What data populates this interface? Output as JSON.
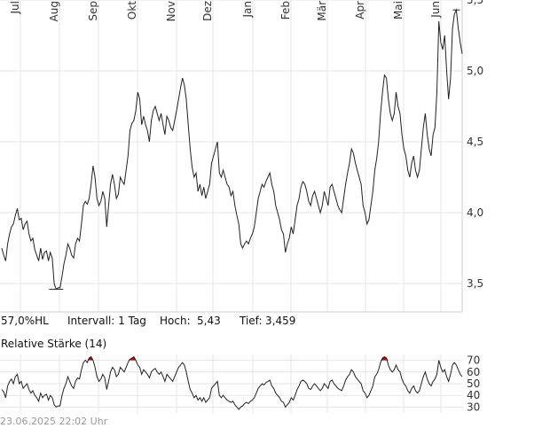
{
  "info_bar": {
    "range": "57,0%HL",
    "interval": "Intervall: 1 Tag",
    "high_label": "Hoch:",
    "high_value": "5,43",
    "low_label": "Tief:",
    "low_value": "3,459"
  },
  "rsi_title": "Relative Stärke (14)",
  "timestamp": "23.06.2025 22:02 Uhr",
  "colors": {
    "line": "#222222",
    "grid": "#e6e6e6",
    "rsi_overbought": "#cc0000"
  },
  "chart_data": [
    {
      "type": "line",
      "title": "",
      "xlabel": "",
      "ylabel": "",
      "x_ticks": [
        "Jul",
        "Aug",
        "Sep",
        "Okt",
        "Nov",
        "Dez",
        "Jan",
        "Feb",
        "Mär",
        "Apr",
        "Mai",
        "Jun"
      ],
      "y_ticks": [
        "3,5",
        "4,0",
        "4,5",
        "5,0",
        "5,5"
      ],
      "ylim": [
        3.3,
        5.5
      ],
      "grid": true,
      "series": [
        {
          "values": [
            3.75,
            3.7,
            3.66,
            3.78,
            3.85,
            3.9,
            3.92,
            3.98,
            4.03,
            3.95,
            3.96,
            3.88,
            3.92,
            3.94,
            3.85,
            3.8,
            3.82,
            3.74,
            3.7,
            3.66,
            3.75,
            3.67,
            3.72,
            3.73,
            3.66,
            3.72,
            3.68,
            3.5,
            3.46,
            3.47,
            3.47,
            3.55,
            3.64,
            3.7,
            3.78,
            3.75,
            3.7,
            3.68,
            3.78,
            3.82,
            3.8,
            3.92,
            4.05,
            4.08,
            4.06,
            4.1,
            4.2,
            4.33,
            4.25,
            4.1,
            4.05,
            4.08,
            4.15,
            4.1,
            3.9,
            4.05,
            4.2,
            4.27,
            4.2,
            4.1,
            4.13,
            4.25,
            4.22,
            4.2,
            4.3,
            4.4,
            4.58,
            4.63,
            4.65,
            4.72,
            4.85,
            4.8,
            4.62,
            4.68,
            4.62,
            4.58,
            4.5,
            4.65,
            4.72,
            4.75,
            4.7,
            4.65,
            4.7,
            4.62,
            4.55,
            4.68,
            4.65,
            4.6,
            4.58,
            4.65,
            4.72,
            4.8,
            4.88,
            4.95,
            4.9,
            4.8,
            4.62,
            4.45,
            4.32,
            4.25,
            4.28,
            4.15,
            4.2,
            4.12,
            4.18,
            4.1,
            4.15,
            4.2,
            4.35,
            4.4,
            4.45,
            4.5,
            4.28,
            4.25,
            4.3,
            4.25,
            4.2,
            4.18,
            4.12,
            4.15,
            4.05,
            3.98,
            3.92,
            3.78,
            3.75,
            3.78,
            3.8,
            3.78,
            3.82,
            3.85,
            3.9,
            4.0,
            4.1,
            4.15,
            4.2,
            4.18,
            4.22,
            4.25,
            4.28,
            4.2,
            4.15,
            4.05,
            4.0,
            3.95,
            3.88,
            3.85,
            3.72,
            3.78,
            3.82,
            3.9,
            3.85,
            3.95,
            4.05,
            4.1,
            4.18,
            4.22,
            4.2,
            4.15,
            4.08,
            4.05,
            4.12,
            4.15,
            4.1,
            4.05,
            4.0,
            4.05,
            4.15,
            4.1,
            4.05,
            4.18,
            4.2,
            4.15,
            4.1,
            4.05,
            4.02,
            4.0,
            4.1,
            4.2,
            4.28,
            4.35,
            4.45,
            4.42,
            4.35,
            4.3,
            4.25,
            4.2,
            4.05,
            4.0,
            3.92,
            3.95,
            4.05,
            4.15,
            4.3,
            4.38,
            4.5,
            4.7,
            4.85,
            4.97,
            4.95,
            4.8,
            4.7,
            4.65,
            4.7,
            4.85,
            4.75,
            4.7,
            4.55,
            4.45,
            4.4,
            4.3,
            4.25,
            4.35,
            4.4,
            4.3,
            4.25,
            4.3,
            4.45,
            4.6,
            4.7,
            4.55,
            4.45,
            4.4,
            4.55,
            4.6,
            4.85,
            5.35,
            5.2,
            5.15,
            5.25,
            5.0,
            4.8,
            4.95,
            5.3,
            5.4,
            5.43,
            5.3,
            5.2,
            5.12
          ]
        }
      ]
    },
    {
      "type": "line",
      "title": "Relative Stärke (14)",
      "y_ticks": [
        "70",
        "60",
        "50",
        "40",
        "30"
      ],
      "ylim": [
        25,
        75
      ],
      "grid": true,
      "series": [
        {
          "values": [
            45,
            43,
            38,
            48,
            52,
            54,
            50,
            56,
            58,
            50,
            52,
            46,
            48,
            50,
            45,
            42,
            44,
            40,
            38,
            35,
            42,
            38,
            40,
            41,
            36,
            40,
            38,
            32,
            30,
            31,
            31,
            40,
            46,
            50,
            56,
            52,
            48,
            46,
            52,
            55,
            54,
            62,
            68,
            70,
            68,
            72,
            73,
            70,
            64,
            56,
            52,
            54,
            58,
            55,
            45,
            52,
            60,
            64,
            62,
            56,
            58,
            64,
            62,
            60,
            64,
            68,
            71,
            72,
            73,
            70,
            66,
            64,
            58,
            62,
            60,
            58,
            55,
            60,
            62,
            63,
            60,
            58,
            60,
            56,
            52,
            58,
            56,
            54,
            52,
            56,
            60,
            64,
            66,
            68,
            66,
            60,
            52,
            45,
            42,
            38,
            40,
            36,
            38,
            35,
            38,
            34,
            36,
            38,
            46,
            48,
            50,
            52,
            40,
            38,
            40,
            38,
            36,
            35,
            34,
            35,
            32,
            30,
            28,
            30,
            31,
            33,
            34,
            33,
            35,
            36,
            38,
            42,
            46,
            48,
            50,
            49,
            51,
            52,
            53,
            48,
            46,
            42,
            40,
            38,
            35,
            34,
            30,
            32,
            34,
            38,
            36,
            40,
            45,
            48,
            52,
            53,
            52,
            50,
            46,
            45,
            48,
            50,
            48,
            46,
            44,
            46,
            50,
            48,
            46,
            52,
            53,
            50,
            48,
            46,
            45,
            44,
            48,
            53,
            56,
            58,
            62,
            60,
            56,
            54,
            52,
            50,
            44,
            42,
            38,
            40,
            44,
            48,
            56,
            58,
            62,
            68,
            72,
            73,
            72,
            66,
            62,
            60,
            62,
            66,
            62,
            60,
            54,
            50,
            48,
            44,
            42,
            46,
            48,
            44,
            42,
            44,
            50,
            56,
            60,
            54,
            50,
            48,
            52,
            54,
            58,
            70,
            64,
            60,
            62,
            56,
            52,
            58,
            66,
            68,
            66,
            62,
            58,
            56
          ]
        }
      ]
    }
  ]
}
